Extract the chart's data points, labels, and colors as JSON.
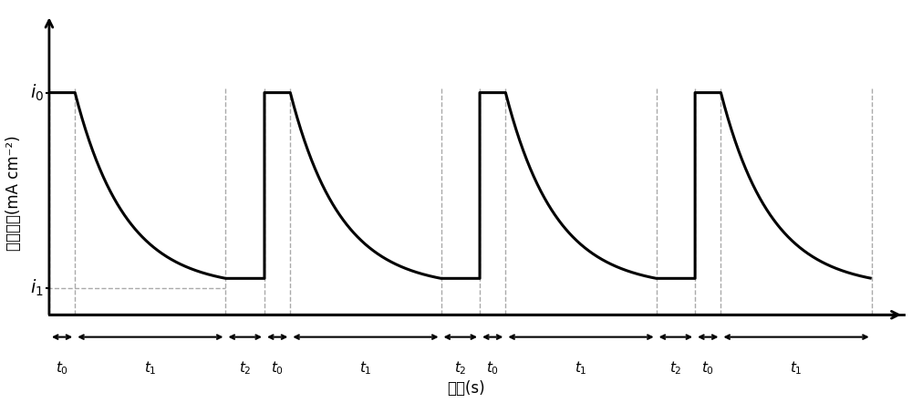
{
  "ylabel": "电流密度(mA cm⁻²)",
  "xlabel": "时间(s)",
  "i0": 1.0,
  "i1": 0.12,
  "background": "#ffffff",
  "line_color": "#000000",
  "dashed_color": "#aaaaaa",
  "t0": 0.12,
  "t1": 0.7,
  "t2": 0.18,
  "n_cycles": 4,
  "decay_k": 3.0,
  "i1_dashed_color": "#aaaaaa"
}
